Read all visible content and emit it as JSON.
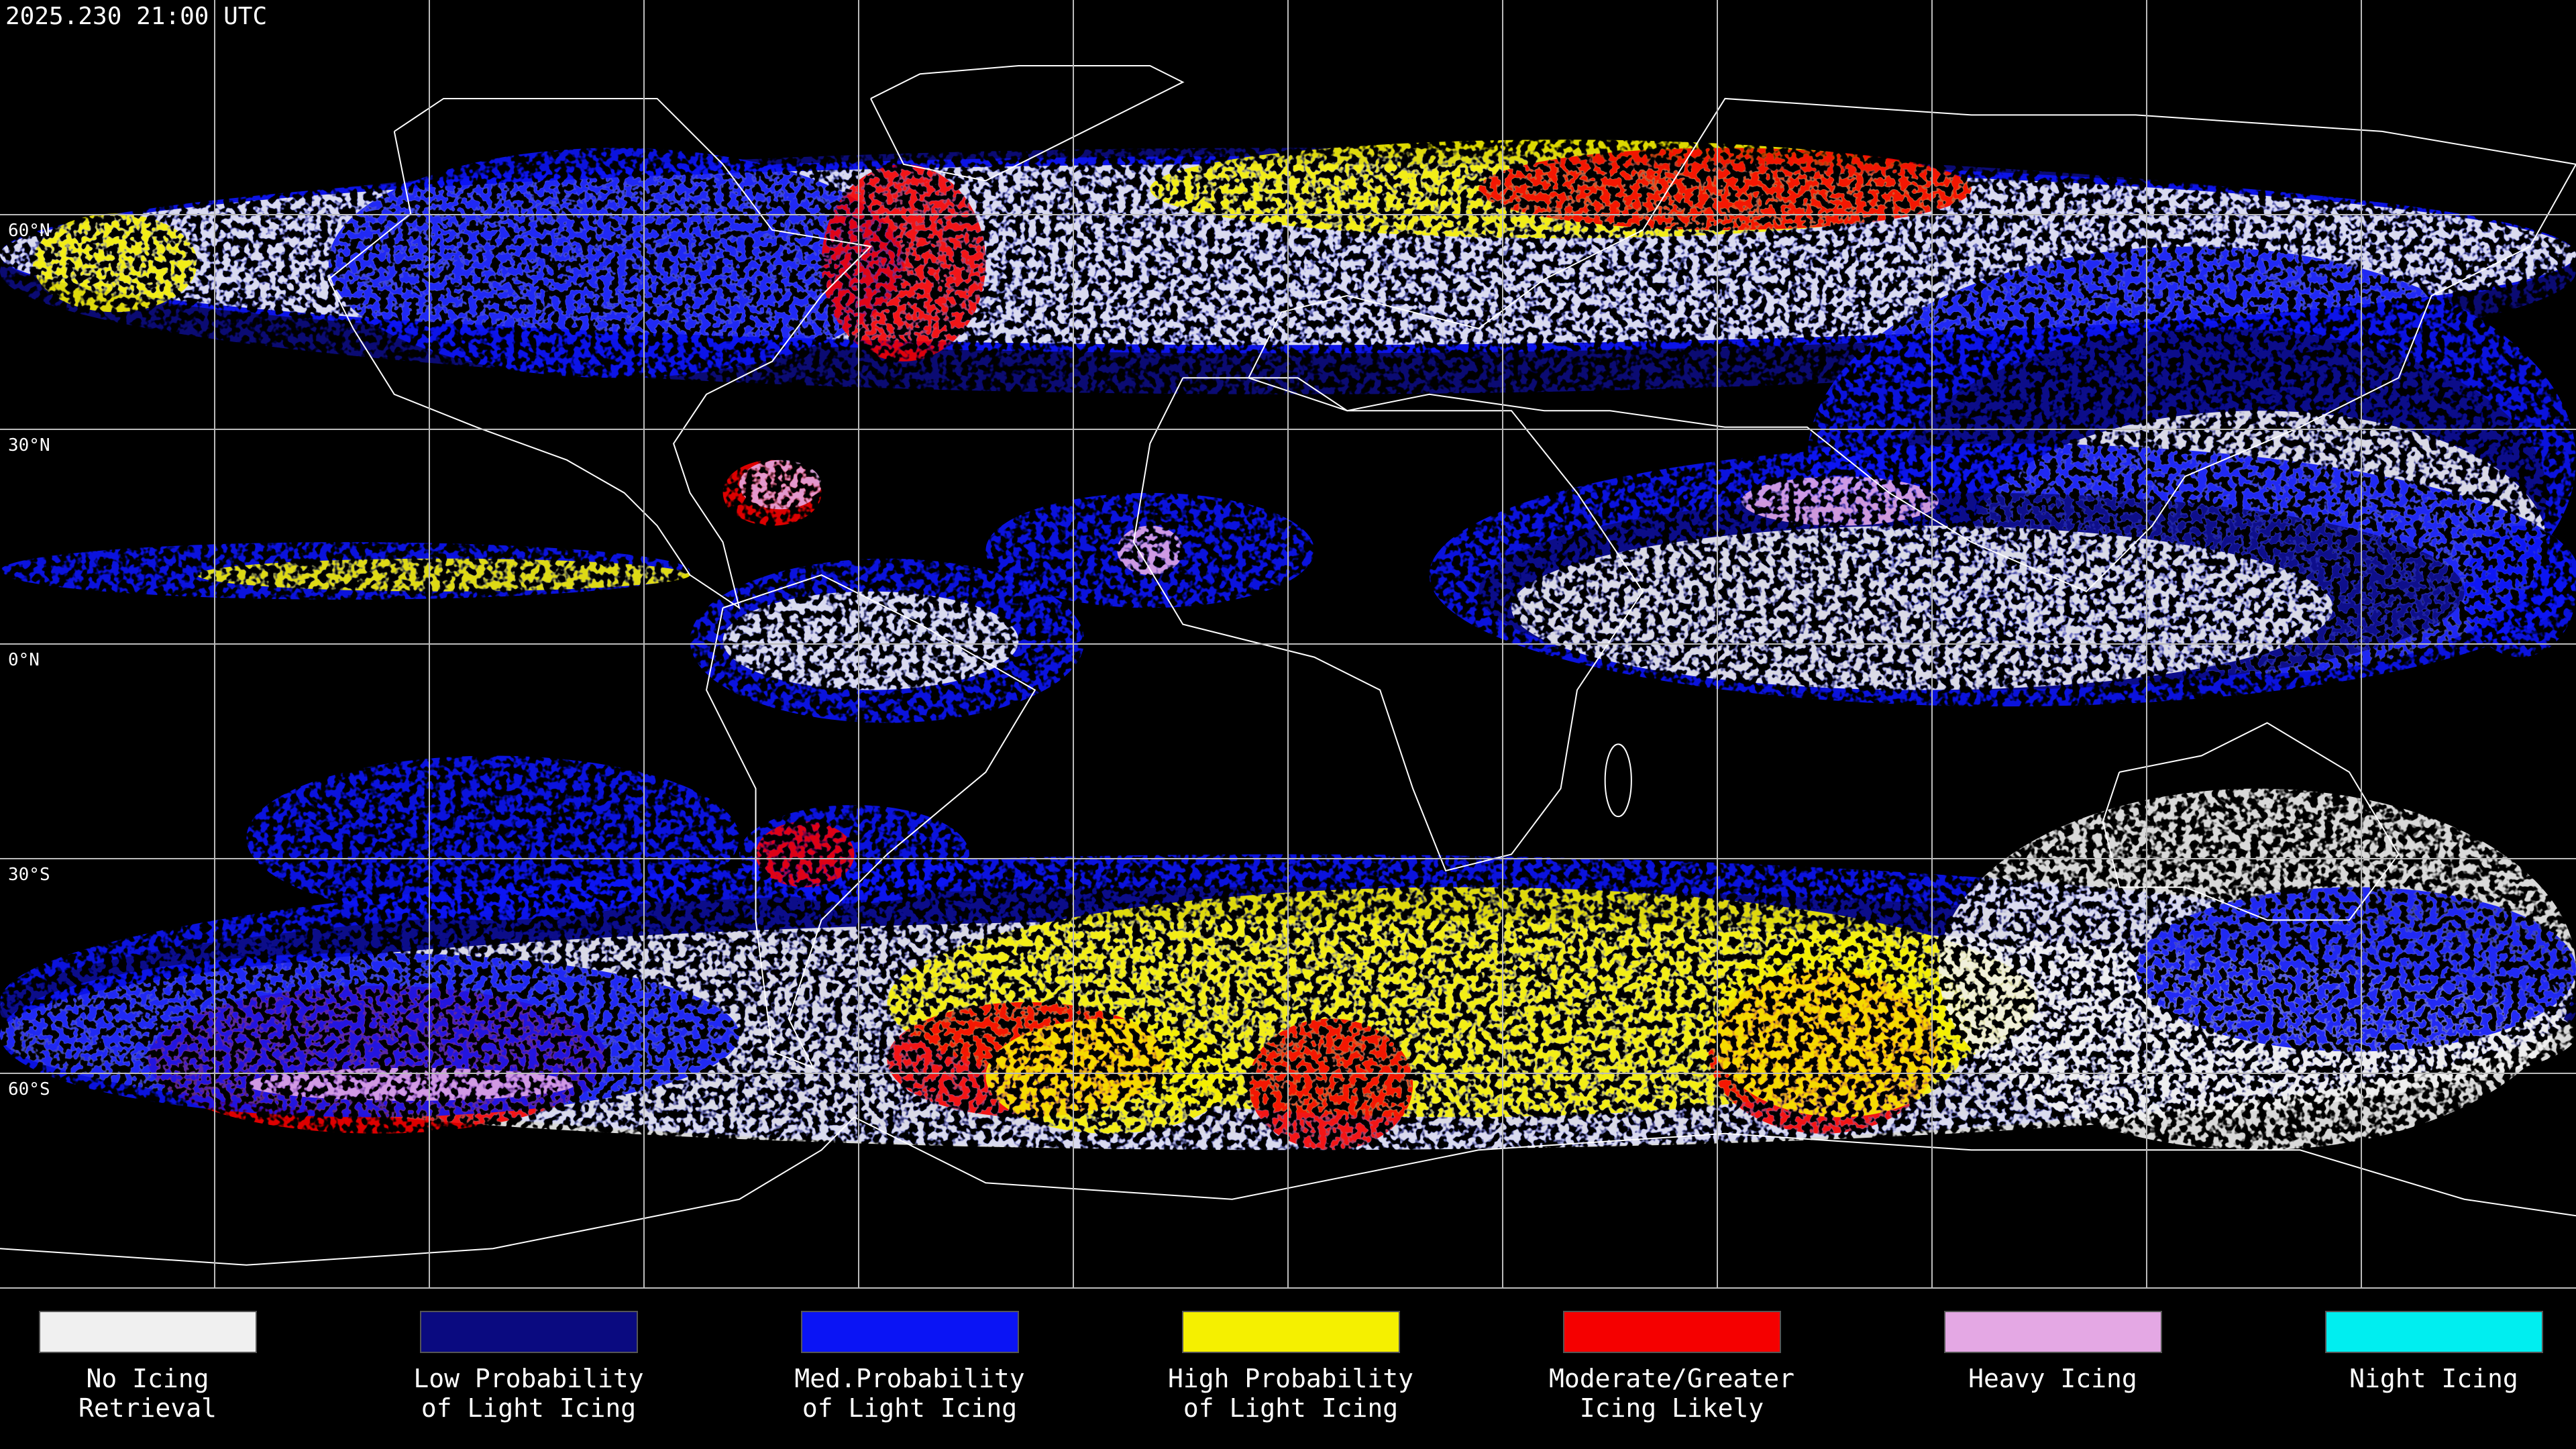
{
  "header": {
    "title": "2025.230 21:00 UTC"
  },
  "map": {
    "lat_labels": [
      "60°N",
      "30°N",
      "0°N",
      "30°S",
      "60°S"
    ]
  },
  "legend": {
    "items": [
      {
        "label": [
          "No Icing",
          "Retrieval"
        ],
        "color": "#f0f0f0"
      },
      {
        "label": [
          "Low Probability",
          "of Light Icing"
        ],
        "color": "#0a0a80"
      },
      {
        "label": [
          "Med.Probability",
          "of Light Icing"
        ],
        "color": "#0a14f5"
      },
      {
        "label": [
          "High Probability",
          "of Light Icing"
        ],
        "color": "#f5f000"
      },
      {
        "label": [
          "Moderate/Greater",
          "Icing Likely"
        ],
        "color": "#f50000"
      },
      {
        "label": [
          "Heavy Icing"
        ],
        "color": "#e4a8e4"
      },
      {
        "label": [
          "Night Icing"
        ],
        "color": "#00eef0"
      }
    ]
  }
}
